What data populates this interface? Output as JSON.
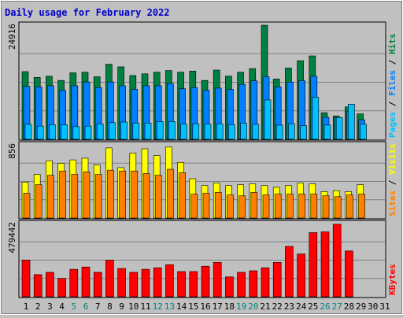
{
  "title": "Daily usage for February 2022",
  "colors": {
    "title": "#0000cc",
    "hits": "#008040",
    "files": "#0080ff",
    "pages": "#00c0ff",
    "visits": "#ffff00",
    "sites": "#ff8000",
    "kbytes": "#ff0000",
    "weekend_label": "#008080",
    "normal_label": "#000000",
    "panel_bg": "#c0c0c0",
    "grid": "#808080"
  },
  "legends": {
    "top": [
      "Pages",
      "Files",
      "Hits"
    ],
    "middle": [
      "Sites",
      "Visits"
    ],
    "bottom": [
      "KBytes"
    ]
  },
  "chart_data": [
    {
      "type": "bar",
      "panel": "top",
      "ymax_label": "24916",
      "ylim": [
        0,
        24916
      ],
      "categories": [
        "1",
        "2",
        "3",
        "4",
        "5",
        "6",
        "7",
        "8",
        "9",
        "10",
        "11",
        "12",
        "13",
        "14",
        "15",
        "16",
        "17",
        "18",
        "19",
        "20",
        "21",
        "22",
        "23",
        "24",
        "25",
        "26",
        "27",
        "28",
        "29",
        "30",
        "31"
      ],
      "series": [
        {
          "name": "Hits",
          "values": [
            14780,
            13520,
            13790,
            12860,
            14520,
            14650,
            13660,
            16400,
            15820,
            13930,
            14300,
            14650,
            15020,
            14650,
            14900,
            12860,
            15120,
            13800,
            14650,
            15440,
            24910,
            13180,
            15570,
            17170,
            18210,
            5810,
            5110,
            7090,
            5550,
            null,
            null
          ]
        },
        {
          "name": "Files",
          "values": [
            11560,
            11450,
            11690,
            10700,
            11690,
            12530,
            11300,
            12530,
            11690,
            10930,
            11690,
            11690,
            12160,
            11060,
            11300,
            10700,
            11190,
            10930,
            12000,
            12780,
            13670,
            11450,
            12510,
            12810,
            13770,
            4800,
            4690,
            6080,
            4260,
            null,
            null
          ]
        },
        {
          "name": "Pages",
          "values": [
            3280,
            2900,
            3180,
            3180,
            2780,
            2900,
            3370,
            3650,
            3780,
            3570,
            3550,
            3900,
            3900,
            3330,
            3400,
            3340,
            3380,
            3200,
            3530,
            3280,
            8600,
            3100,
            3400,
            2980,
            9200,
            3120,
            4750,
            7680,
            3300,
            null,
            null
          ]
        }
      ]
    },
    {
      "type": "bar",
      "panel": "middle",
      "ymax_label": "856",
      "ylim": [
        0,
        856
      ],
      "categories": [
        "1",
        "2",
        "3",
        "4",
        "5",
        "6",
        "7",
        "8",
        "9",
        "10",
        "11",
        "12",
        "13",
        "14",
        "15",
        "16",
        "17",
        "18",
        "19",
        "20",
        "21",
        "22",
        "23",
        "24",
        "25",
        "26",
        "27",
        "28",
        "29",
        "30",
        "31"
      ],
      "series": [
        {
          "name": "Visits",
          "values": [
            420,
            510,
            670,
            640,
            680,
            700,
            620,
            820,
            590,
            760,
            810,
            730,
            830,
            650,
            460,
            380,
            410,
            380,
            390,
            400,
            380,
            360,
            380,
            410,
            400,
            310,
            320,
            310,
            390,
            null,
            null
          ]
        },
        {
          "name": "Sites",
          "values": [
            290,
            390,
            500,
            550,
            510,
            540,
            510,
            560,
            550,
            550,
            520,
            500,
            570,
            530,
            280,
            290,
            300,
            270,
            260,
            300,
            270,
            280,
            280,
            280,
            280,
            260,
            250,
            270,
            280,
            null,
            null
          ]
        }
      ]
    },
    {
      "type": "bar",
      "panel": "bottom",
      "ymax_label": "479442",
      "ylim": [
        0,
        479442
      ],
      "categories": [
        "1",
        "2",
        "3",
        "4",
        "5",
        "6",
        "7",
        "8",
        "9",
        "10",
        "11",
        "12",
        "13",
        "14",
        "15",
        "16",
        "17",
        "18",
        "19",
        "20",
        "21",
        "22",
        "23",
        "24",
        "25",
        "26",
        "27",
        "28",
        "29",
        "30",
        "31"
      ],
      "series": [
        {
          "name": "KBytes",
          "values": [
            240000,
            145000,
            160000,
            120000,
            180000,
            195000,
            160000,
            240000,
            185000,
            160000,
            180000,
            190000,
            210000,
            165000,
            165000,
            200000,
            225000,
            130000,
            160000,
            170000,
            190000,
            225000,
            330000,
            280000,
            420000,
            425000,
            475000,
            300000,
            null,
            null,
            null
          ]
        }
      ]
    }
  ],
  "x_labels": [
    {
      "text": "1",
      "weekend": false
    },
    {
      "text": "2",
      "weekend": false
    },
    {
      "text": "3",
      "weekend": false
    },
    {
      "text": "4",
      "weekend": false
    },
    {
      "text": "5",
      "weekend": true
    },
    {
      "text": "6",
      "weekend": true
    },
    {
      "text": "7",
      "weekend": false
    },
    {
      "text": "8",
      "weekend": false
    },
    {
      "text": "9",
      "weekend": false
    },
    {
      "text": "10",
      "weekend": false
    },
    {
      "text": "11",
      "weekend": false
    },
    {
      "text": "12",
      "weekend": true
    },
    {
      "text": "13",
      "weekend": true
    },
    {
      "text": "14",
      "weekend": false
    },
    {
      "text": "15",
      "weekend": false
    },
    {
      "text": "16",
      "weekend": false
    },
    {
      "text": "17",
      "weekend": false
    },
    {
      "text": "18",
      "weekend": false
    },
    {
      "text": "19",
      "weekend": true
    },
    {
      "text": "20",
      "weekend": true
    },
    {
      "text": "21",
      "weekend": false
    },
    {
      "text": "22",
      "weekend": false
    },
    {
      "text": "23",
      "weekend": false
    },
    {
      "text": "24",
      "weekend": false
    },
    {
      "text": "25",
      "weekend": false
    },
    {
      "text": "26",
      "weekend": true
    },
    {
      "text": "27",
      "weekend": true
    },
    {
      "text": "28",
      "weekend": false
    },
    {
      "text": "29",
      "weekend": false
    },
    {
      "text": "30",
      "weekend": false
    },
    {
      "text": "31",
      "weekend": false
    }
  ]
}
